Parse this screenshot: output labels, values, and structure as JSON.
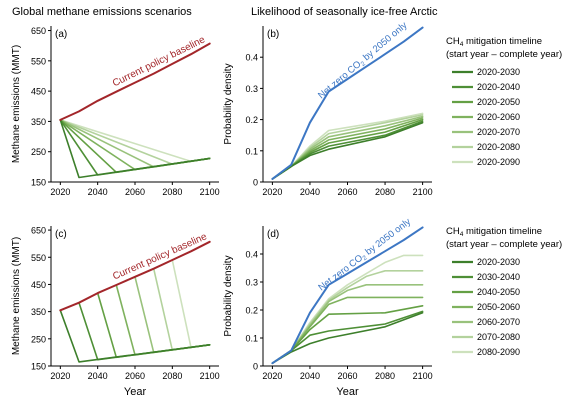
{
  "figure": {
    "left_title": "Global methane emissions scenarios",
    "right_title": "Likelihood of seasonally ice-free Arctic",
    "legend_top": {
      "title_line1_pre": "CH",
      "title_line1_sub": "4",
      "title_line1_post": " mitigation timeline",
      "title_line2": "(start year – complete year)",
      "entries": [
        "2020-2030",
        "2020-2040",
        "2020-2050",
        "2020-2060",
        "2020-2070",
        "2020-2080",
        "2020-2090"
      ]
    },
    "legend_bottom": {
      "title_line1_pre": "CH",
      "title_line1_sub": "4",
      "title_line1_post": " mitigation timeline",
      "title_line2": "(start year – complete year)",
      "entries": [
        "2020-2030",
        "2030-2040",
        "2040-2050",
        "2050-2060",
        "2060-2070",
        "2070-2080",
        "2080-2090"
      ]
    },
    "colors": {
      "greens": [
        "#3d7f2b",
        "#4e8f36",
        "#64a044",
        "#7fb25e",
        "#99c27c",
        "#b3d29d",
        "#cde1bd"
      ],
      "baseline": "#a3262a",
      "netzero": "#3d77c4",
      "axis": "#000000"
    }
  },
  "chart_data": [
    {
      "panel": "(a)",
      "type": "line",
      "ylabel": "Methane emissions (MMT)",
      "xlabel": "",
      "xlim": [
        2015,
        2105
      ],
      "ylim": [
        150,
        665
      ],
      "xticks": [
        2020,
        2040,
        2060,
        2080,
        2100
      ],
      "yticks": [
        150,
        250,
        350,
        450,
        550,
        650
      ],
      "annotation": "Current policy baseline",
      "baseline": {
        "x": [
          2020,
          2030,
          2040,
          2050,
          2060,
          2070,
          2080,
          2090,
          2100
        ],
        "y": [
          355,
          383,
          418,
          448,
          478,
          508,
          540,
          572,
          607
        ]
      },
      "series": [
        {
          "name": "2020-2030",
          "x": [
            2020,
            2030,
            2100
          ],
          "y": [
            355,
            165,
            228
          ]
        },
        {
          "name": "2020-2040",
          "x": [
            2020,
            2040,
            2100
          ],
          "y": [
            355,
            173,
            228
          ]
        },
        {
          "name": "2020-2050",
          "x": [
            2020,
            2050,
            2100
          ],
          "y": [
            355,
            182,
            228
          ]
        },
        {
          "name": "2020-2060",
          "x": [
            2020,
            2060,
            2100
          ],
          "y": [
            355,
            191,
            228
          ]
        },
        {
          "name": "2020-2070",
          "x": [
            2020,
            2070,
            2100
          ],
          "y": [
            355,
            200,
            228
          ]
        },
        {
          "name": "2020-2080",
          "x": [
            2020,
            2080,
            2100
          ],
          "y": [
            355,
            209,
            228
          ]
        },
        {
          "name": "2020-2090",
          "x": [
            2020,
            2090,
            2100
          ],
          "y": [
            355,
            218,
            228
          ]
        }
      ]
    },
    {
      "panel": "(b)",
      "type": "line",
      "ylabel": "Probability density",
      "xlabel": "",
      "xlim": [
        2015,
        2105
      ],
      "ylim": [
        0,
        0.5
      ],
      "xticks": [
        2020,
        2040,
        2060,
        2080,
        2100
      ],
      "yticks": [
        0,
        0.1,
        0.2,
        0.3,
        0.4
      ],
      "annotation": "Net zero CO2 by 2050 only",
      "netzero": {
        "x": [
          2020,
          2030,
          2040,
          2050,
          2060,
          2070,
          2080,
          2090,
          2100
        ],
        "y": [
          0.01,
          0.055,
          0.19,
          0.29,
          0.33,
          0.37,
          0.41,
          0.45,
          0.495
        ]
      },
      "series": [
        {
          "name": "2020-2030",
          "x": [
            2020,
            2030,
            2040,
            2050,
            2080,
            2100
          ],
          "y": [
            0.01,
            0.05,
            0.085,
            0.105,
            0.145,
            0.19
          ]
        },
        {
          "name": "2020-2040",
          "x": [
            2020,
            2030,
            2040,
            2050,
            2080,
            2100
          ],
          "y": [
            0.01,
            0.05,
            0.09,
            0.115,
            0.15,
            0.195
          ]
        },
        {
          "name": "2020-2050",
          "x": [
            2020,
            2030,
            2040,
            2050,
            2080,
            2100
          ],
          "y": [
            0.01,
            0.05,
            0.095,
            0.125,
            0.16,
            0.2
          ]
        },
        {
          "name": "2020-2060",
          "x": [
            2020,
            2030,
            2040,
            2050,
            2080,
            2100
          ],
          "y": [
            0.01,
            0.05,
            0.1,
            0.135,
            0.17,
            0.205
          ]
        },
        {
          "name": "2020-2070",
          "x": [
            2020,
            2030,
            2040,
            2050,
            2080,
            2100
          ],
          "y": [
            0.01,
            0.05,
            0.105,
            0.145,
            0.18,
            0.21
          ]
        },
        {
          "name": "2020-2080",
          "x": [
            2020,
            2030,
            2040,
            2050,
            2080,
            2100
          ],
          "y": [
            0.01,
            0.05,
            0.11,
            0.155,
            0.19,
            0.215
          ]
        },
        {
          "name": "2020-2090",
          "x": [
            2020,
            2030,
            2040,
            2050,
            2080,
            2100
          ],
          "y": [
            0.01,
            0.05,
            0.115,
            0.165,
            0.195,
            0.22
          ]
        }
      ]
    },
    {
      "panel": "(c)",
      "type": "line",
      "ylabel": "Methane emissions (MMT)",
      "xlabel": "Year",
      "xlim": [
        2015,
        2105
      ],
      "ylim": [
        150,
        665
      ],
      "xticks": [
        2020,
        2040,
        2060,
        2080,
        2100
      ],
      "yticks": [
        150,
        250,
        350,
        450,
        550,
        650
      ],
      "annotation": "Current policy baseline",
      "baseline": {
        "x": [
          2020,
          2030,
          2040,
          2050,
          2060,
          2070,
          2080,
          2090,
          2100
        ],
        "y": [
          355,
          383,
          418,
          448,
          478,
          508,
          540,
          572,
          607
        ]
      },
      "series": [
        {
          "name": "2020-2030",
          "x": [
            2020,
            2030,
            2100
          ],
          "y": [
            355,
            165,
            228
          ]
        },
        {
          "name": "2030-2040",
          "x": [
            2030,
            2040,
            2100
          ],
          "y": [
            383,
            173,
            228
          ]
        },
        {
          "name": "2040-2050",
          "x": [
            2040,
            2050,
            2100
          ],
          "y": [
            418,
            182,
            228
          ]
        },
        {
          "name": "2050-2060",
          "x": [
            2050,
            2060,
            2100
          ],
          "y": [
            448,
            191,
            228
          ]
        },
        {
          "name": "2060-2070",
          "x": [
            2060,
            2070,
            2100
          ],
          "y": [
            478,
            200,
            228
          ]
        },
        {
          "name": "2070-2080",
          "x": [
            2070,
            2080,
            2100
          ],
          "y": [
            508,
            209,
            228
          ]
        },
        {
          "name": "2080-2090",
          "x": [
            2080,
            2090,
            2100
          ],
          "y": [
            540,
            218,
            228
          ]
        }
      ]
    },
    {
      "panel": "(d)",
      "type": "line",
      "ylabel": "Probability density",
      "xlabel": "Year",
      "xlim": [
        2015,
        2105
      ],
      "ylim": [
        0,
        0.5
      ],
      "xticks": [
        2020,
        2040,
        2060,
        2080,
        2100
      ],
      "yticks": [
        0,
        0.1,
        0.2,
        0.3,
        0.4
      ],
      "annotation": "Net zero CO2 by 2050 only",
      "netzero": {
        "x": [
          2020,
          2030,
          2040,
          2050,
          2060,
          2070,
          2080,
          2090,
          2100
        ],
        "y": [
          0.01,
          0.055,
          0.19,
          0.29,
          0.33,
          0.37,
          0.41,
          0.45,
          0.495
        ]
      },
      "series": [
        {
          "name": "2020-2030",
          "x": [
            2020,
            2030,
            2040,
            2050,
            2080,
            2100
          ],
          "y": [
            0.01,
            0.05,
            0.08,
            0.1,
            0.14,
            0.19
          ]
        },
        {
          "name": "2030-2040",
          "x": [
            2020,
            2030,
            2040,
            2050,
            2080,
            2100
          ],
          "y": [
            0.01,
            0.055,
            0.11,
            0.125,
            0.15,
            0.195
          ]
        },
        {
          "name": "2040-2050",
          "x": [
            2020,
            2030,
            2040,
            2050,
            2080,
            2100
          ],
          "y": [
            0.01,
            0.055,
            0.13,
            0.185,
            0.19,
            0.215
          ]
        },
        {
          "name": "2050-2060",
          "x": [
            2020,
            2030,
            2040,
            2050,
            2060,
            2080,
            2100
          ],
          "y": [
            0.01,
            0.055,
            0.14,
            0.22,
            0.245,
            0.245,
            0.245
          ]
        },
        {
          "name": "2060-2070",
          "x": [
            2020,
            2030,
            2040,
            2050,
            2060,
            2070,
            2080,
            2100
          ],
          "y": [
            0.01,
            0.055,
            0.145,
            0.23,
            0.27,
            0.29,
            0.29,
            0.29
          ]
        },
        {
          "name": "2070-2080",
          "x": [
            2020,
            2030,
            2040,
            2050,
            2060,
            2070,
            2080,
            2100
          ],
          "y": [
            0.01,
            0.055,
            0.15,
            0.235,
            0.28,
            0.32,
            0.34,
            0.34
          ]
        },
        {
          "name": "2080-2090",
          "x": [
            2020,
            2030,
            2040,
            2050,
            2060,
            2070,
            2080,
            2090,
            2100
          ],
          "y": [
            0.01,
            0.055,
            0.155,
            0.24,
            0.29,
            0.33,
            0.37,
            0.395,
            0.395
          ]
        }
      ]
    }
  ]
}
